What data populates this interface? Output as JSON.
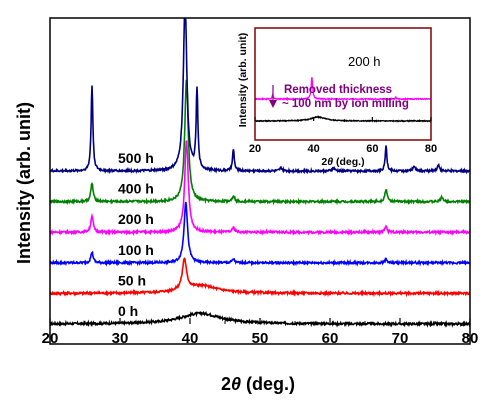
{
  "chart_data": [
    {
      "type": "line",
      "title": "",
      "xlabel_prefix": "2",
      "xlabel_theta": "θ",
      "xlabel_suffix": " (deg.)",
      "ylabel": "Intensity (arb. unit)",
      "xlim": [
        20,
        80
      ],
      "xticks": [
        20,
        30,
        40,
        50,
        60,
        70,
        80
      ],
      "y_ticks_shown": false,
      "legend": "none",
      "series": [
        {
          "name": "0 h",
          "color": "#000000",
          "baseline": 0,
          "peaks": [
            {
              "x": 41.5,
              "height": 0.35,
              "width": 3.5
            }
          ]
        },
        {
          "name": "50 h",
          "color": "#ff0000",
          "baseline": 1,
          "peaks": [
            {
              "x": 39.2,
              "height": 1.0,
              "width": 0.35
            },
            {
              "x": 41.5,
              "height": 0.25,
              "width": 3.0
            }
          ]
        },
        {
          "name": "100 h",
          "color": "#0000ff",
          "baseline": 2,
          "peaks": [
            {
              "x": 26.0,
              "height": 0.35,
              "width": 0.2
            },
            {
              "x": 39.4,
              "height": 2.0,
              "width": 0.3
            },
            {
              "x": 46.2,
              "height": 0.12,
              "width": 0.2
            },
            {
              "x": 68.0,
              "height": 0.12,
              "width": 0.2
            }
          ]
        },
        {
          "name": "200 h",
          "color": "#ff00ff",
          "baseline": 3,
          "peaks": [
            {
              "x": 26.0,
              "height": 0.55,
              "width": 0.2
            },
            {
              "x": 39.5,
              "height": 3.0,
              "width": 0.3
            },
            {
              "x": 46.2,
              "height": 0.15,
              "width": 0.2
            },
            {
              "x": 68.0,
              "height": 0.2,
              "width": 0.2
            }
          ]
        },
        {
          "name": "400 h",
          "color": "#008000",
          "baseline": 4,
          "peaks": [
            {
              "x": 26.0,
              "height": 0.6,
              "width": 0.2
            },
            {
              "x": 39.5,
              "height": 4.0,
              "width": 0.3
            },
            {
              "x": 46.2,
              "height": 0.2,
              "width": 0.2
            },
            {
              "x": 68.0,
              "height": 0.4,
              "width": 0.2
            },
            {
              "x": 76.0,
              "height": 0.15,
              "width": 0.2
            }
          ]
        },
        {
          "name": "500 h",
          "color": "#000080",
          "baseline": 5,
          "peaks": [
            {
              "x": 26.0,
              "height": 2.8,
              "width": 0.15
            },
            {
              "x": 39.3,
              "height": 5.5,
              "width": 0.3
            },
            {
              "x": 41.0,
              "height": 2.6,
              "width": 0.15
            },
            {
              "x": 46.2,
              "height": 0.7,
              "width": 0.15
            },
            {
              "x": 53.0,
              "height": 0.1,
              "width": 0.2
            },
            {
              "x": 60.5,
              "height": 0.1,
              "width": 0.2
            },
            {
              "x": 68.0,
              "height": 0.8,
              "width": 0.15
            },
            {
              "x": 72.0,
              "height": 0.15,
              "width": 0.2
            },
            {
              "x": 75.5,
              "height": 0.2,
              "width": 0.2
            }
          ]
        }
      ]
    },
    {
      "type": "line",
      "xlabel_prefix": "2",
      "xlabel_theta": "θ",
      "xlabel_suffix": " (deg.)",
      "ylabel": "Intensity (arb. unit)",
      "xlim": [
        20,
        80
      ],
      "xticks": [
        20,
        40,
        60,
        80
      ],
      "note_line1": "Removed thickness",
      "note_line2": "~ 100 nm by ion milling",
      "note_color": "#800080",
      "series": [
        {
          "name": "200 h",
          "color": "#ff00ff",
          "baseline": 1,
          "peaks": [
            {
              "x": 26.0,
              "height": 0.2,
              "width": 0.2
            },
            {
              "x": 39.4,
              "height": 1.0,
              "width": 0.3
            },
            {
              "x": 68.0,
              "height": 0.08,
              "width": 0.2
            }
          ]
        },
        {
          "name": "",
          "color": "#000000",
          "baseline": 0,
          "peaks": [
            {
              "x": 41.5,
              "height": 0.18,
              "width": 3.0
            }
          ]
        }
      ]
    }
  ]
}
